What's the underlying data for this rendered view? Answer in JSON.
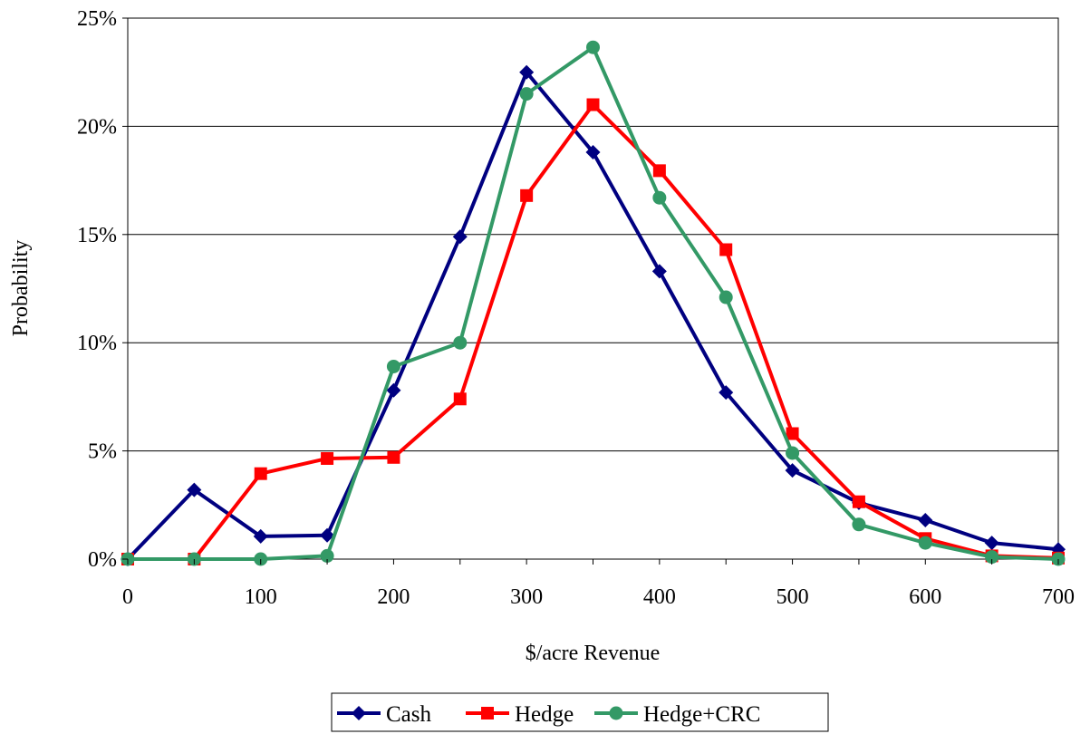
{
  "chart_data": {
    "type": "line",
    "title": "",
    "xlabel": "$/acre Revenue",
    "ylabel": "Probability",
    "x": [
      0,
      50,
      100,
      150,
      200,
      250,
      300,
      350,
      400,
      450,
      500,
      550,
      600,
      650,
      700
    ],
    "x_ticks": [
      "0",
      "100",
      "200",
      "300",
      "400",
      "500",
      "600",
      "700"
    ],
    "y_ticks": [
      "0%",
      "5%",
      "10%",
      "15%",
      "20%",
      "25%"
    ],
    "xlim": [
      0,
      700
    ],
    "ylim": [
      0,
      25
    ],
    "y_unit": "%",
    "grid": "horizontal",
    "legend_position": "bottom",
    "series": [
      {
        "name": "Cash",
        "color": "#000080",
        "marker": "diamond",
        "values": [
          0,
          3.2,
          1.05,
          1.1,
          7.8,
          14.9,
          22.5,
          18.8,
          13.3,
          7.7,
          4.1,
          2.6,
          1.8,
          0.75,
          0.45
        ]
      },
      {
        "name": "Hedge",
        "color": "#ff0000",
        "marker": "square",
        "values": [
          0,
          0,
          3.95,
          4.65,
          4.7,
          7.4,
          16.8,
          21.0,
          17.95,
          14.3,
          5.8,
          2.65,
          0.95,
          0.15,
          0.05
        ]
      },
      {
        "name": "Hedge+CRC",
        "color": "#339966",
        "marker": "circle",
        "values": [
          0,
          0,
          0,
          0.15,
          8.9,
          10.0,
          21.5,
          23.65,
          16.7,
          12.1,
          4.9,
          1.6,
          0.75,
          0.1,
          0
        ]
      }
    ]
  }
}
